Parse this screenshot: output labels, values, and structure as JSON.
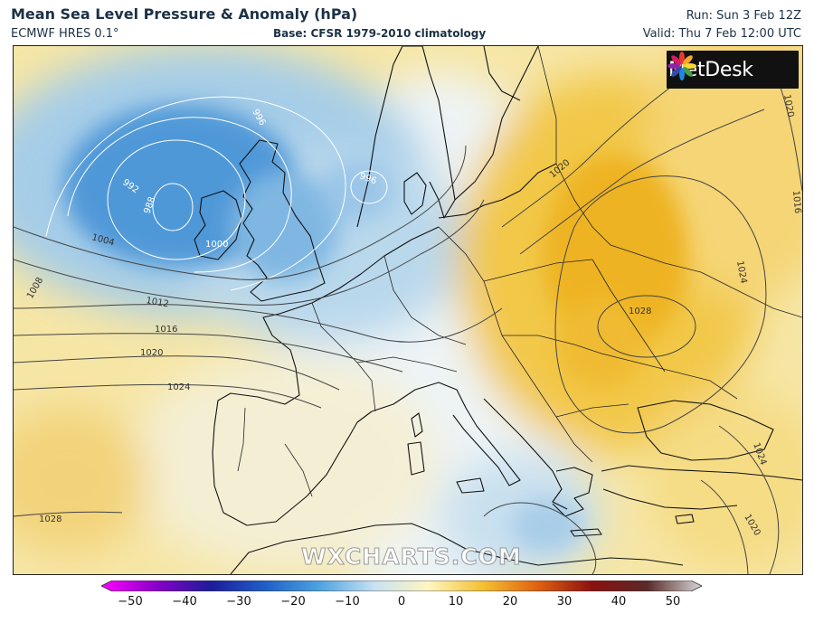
{
  "header": {
    "title": "Mean Sea Level Pressure & Anomaly (hPa)",
    "model": "ECMWF HRES 0.1°",
    "base": "Base: CFSR 1979-2010 climatology",
    "run": "Run: Sun 3 Feb 12Z",
    "valid": "Valid: Thu 7 Feb 12:00 UTC"
  },
  "branding": {
    "logo_text": "MetDesk",
    "watermark": "WXCHARTS.COM"
  },
  "colorbar": {
    "ticks": [
      "−50",
      "−40",
      "−30",
      "−20",
      "−10",
      "0",
      "10",
      "20",
      "30",
      "40",
      "50"
    ],
    "stops": [
      "#ff00ff",
      "#8a00c8",
      "#1c1c9a",
      "#1f5fc8",
      "#4ea4e0",
      "#c8e2f2",
      "#fff6c0",
      "#f4c030",
      "#e06010",
      "#8a1010",
      "#5a2a2a",
      "#d8d8d8"
    ]
  },
  "contours": {
    "labels": [
      "988",
      "992",
      "996",
      "996",
      "1000",
      "1004",
      "1008",
      "1012",
      "1016",
      "1020",
      "1024",
      "1028",
      "1020",
      "1024",
      "1028",
      "1024",
      "1020",
      "1020",
      "1016"
    ]
  }
}
